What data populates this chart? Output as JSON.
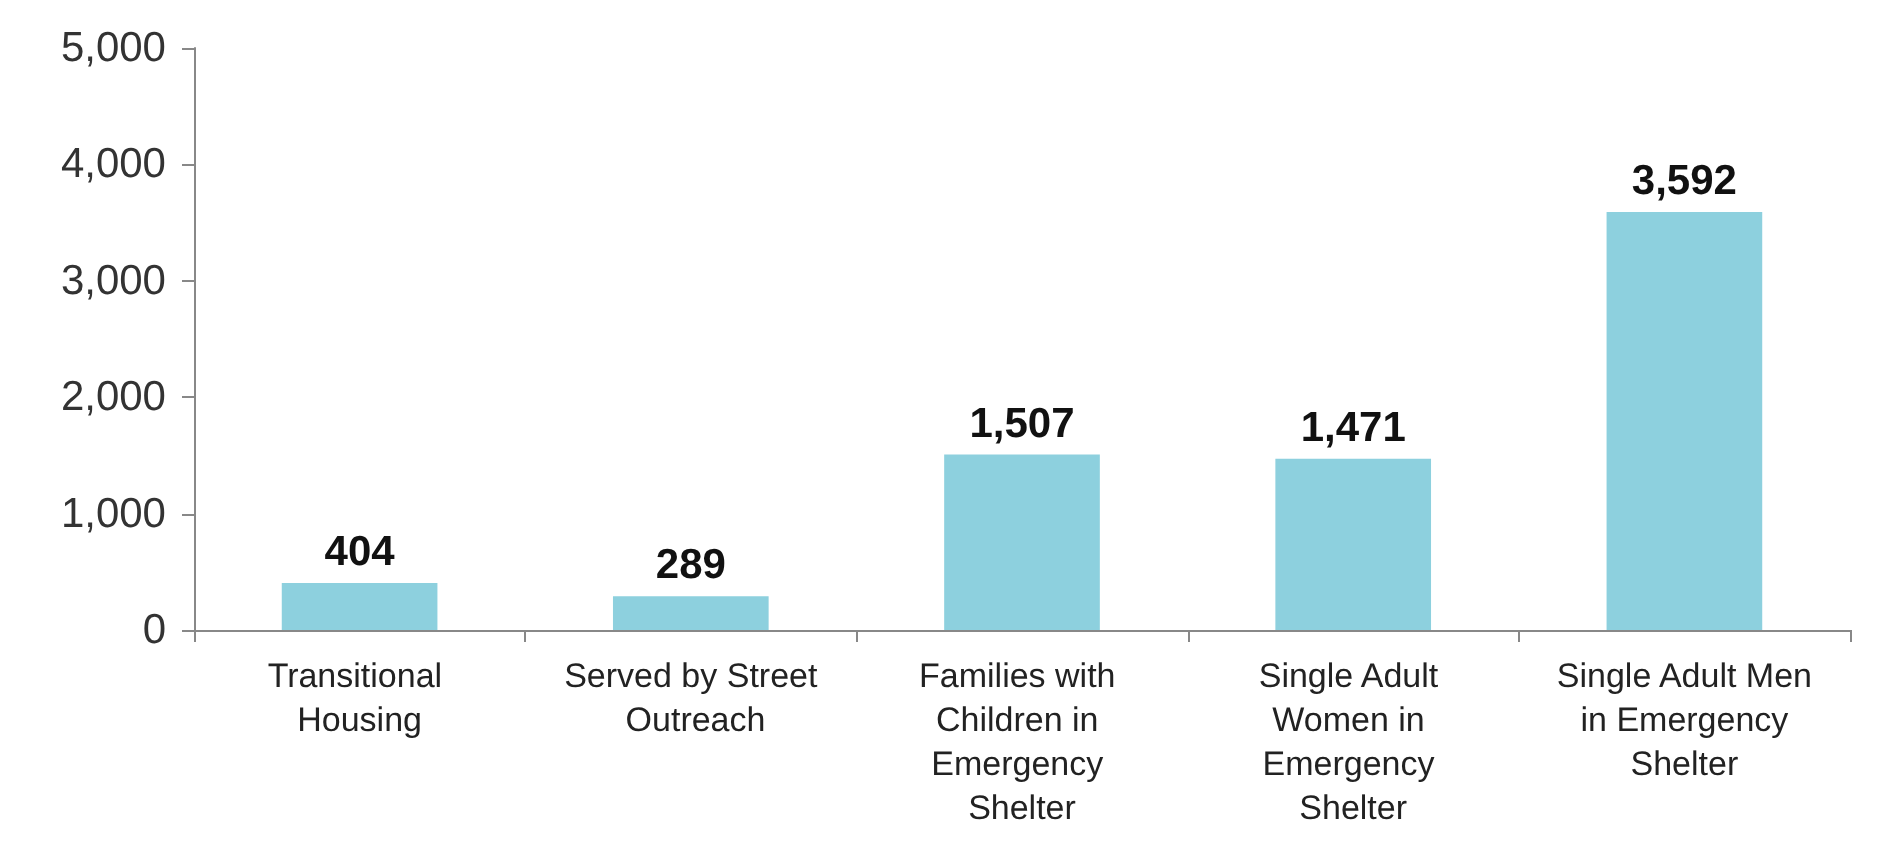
{
  "chart_data": {
    "type": "bar",
    "categories": [
      "Transitional Housing",
      "Served by Street Outreach",
      "Families with Children in Emergency Shelter",
      "Single Adult Women in Emergency Shelter",
      "Single Adult Men in Emergency Shelter"
    ],
    "values": [
      404,
      289,
      1507,
      1471,
      3592
    ],
    "color": "#8dd0de",
    "ylim": [
      0,
      5000
    ],
    "yticks": [
      {
        "value": 0,
        "label": "0"
      },
      {
        "value": 1000,
        "label": "1,000"
      },
      {
        "value": 2000,
        "label": "2,000"
      },
      {
        "value": 3000,
        "label": "3,000"
      },
      {
        "value": 4000,
        "label": "4,000"
      },
      {
        "value": 5000,
        "label": "5,000"
      }
    ],
    "value_labels": [
      "404",
      "289",
      "1,507",
      "1,471",
      "3,592"
    ],
    "grid": false
  }
}
